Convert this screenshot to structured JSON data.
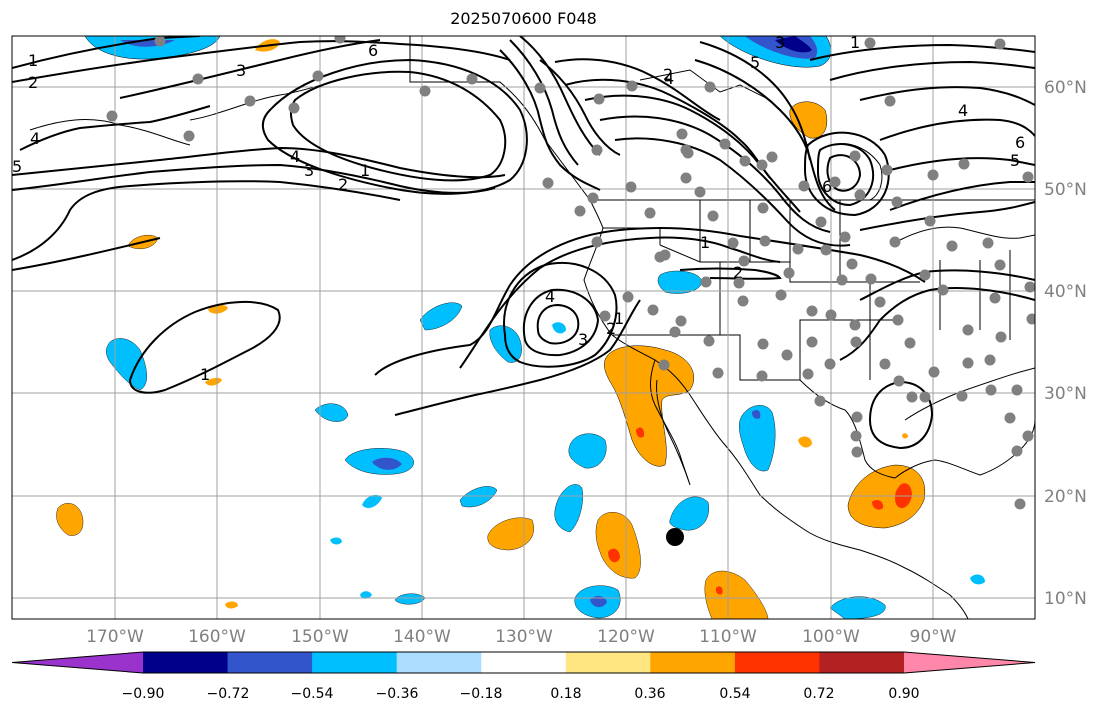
{
  "title": "2025070600 F048",
  "lon_labels": [
    "170°W",
    "160°W",
    "150°W",
    "140°W",
    "130°W",
    "120°W",
    "110°W",
    "100°W",
    "90°W"
  ],
  "lat_labels": [
    "60°N",
    "50°N",
    "40°N",
    "30°N",
    "20°N",
    "10°N"
  ],
  "colorbar": {
    "colors": [
      "#9933cc",
      "#00008b",
      "#3355cc",
      "#00bfff",
      "#aaddff",
      "#ffffff",
      "#ffe680",
      "#ffa500",
      "#ff3300",
      "#b22222",
      "#ff88aa"
    ],
    "tick_labels": [
      "−0.90",
      "−0.72",
      "−0.54",
      "−0.36",
      "−0.18",
      "0.18",
      "0.36",
      "0.54",
      "0.72",
      "0.90"
    ]
  },
  "contour_labels": [
    "1",
    "2",
    "3",
    "4",
    "5",
    "6",
    "1",
    "2",
    "3",
    "4",
    "5",
    "6",
    "4",
    "3",
    "2",
    "1",
    "3",
    "4",
    "1",
    "2",
    "2",
    "1",
    "4",
    "5",
    "6",
    "1"
  ],
  "colors": {
    "gridline": "#a0a0a0",
    "station": "#808080",
    "contour": "#000000"
  }
}
